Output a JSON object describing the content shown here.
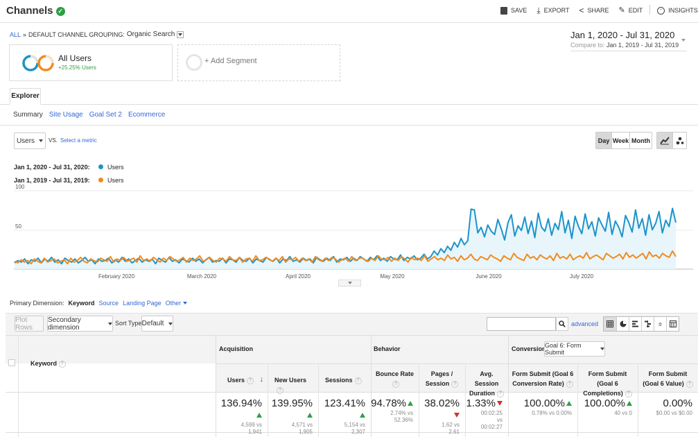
{
  "header": {
    "title": "Channels",
    "actions": [
      {
        "label": "SAVE",
        "icon": "save-icon"
      },
      {
        "label": "EXPORT",
        "icon": "export-icon"
      },
      {
        "label": "SHARE",
        "icon": "share-icon"
      },
      {
        "label": "EDIT",
        "icon": "pencil-icon"
      },
      {
        "label": "INSIGHTS",
        "icon": "insights-icon"
      }
    ]
  },
  "breadcrumb": {
    "all": "ALL",
    "separator": "»",
    "grouping": "DEFAULT CHANNEL GROUPING:",
    "value": "Organic Search"
  },
  "date_range": {
    "primary": "Jan 1, 2020 - Jul 31, 2020",
    "compare_label": "Compare to:",
    "compare": "Jan 1, 2019 - Jul 31, 2019"
  },
  "segments": {
    "active_name": "All Users",
    "active_change": "+25.25% Users",
    "add_label": "+ Add Segment"
  },
  "tabs": {
    "active": "Explorer",
    "subtabs": [
      "Summary",
      "Site Usage",
      "Goal Set 2",
      "Ecommerce"
    ]
  },
  "chart_controls": {
    "metric": "Users",
    "vs": "VS.",
    "select_metric": "Select a metric",
    "granularity": [
      "Day",
      "Week",
      "Month"
    ]
  },
  "legend": [
    {
      "range": "Jan 1, 2020 - Jul 31, 2020:",
      "series": "Users",
      "color": "#1d93c9"
    },
    {
      "range": "Jan 1, 2019 - Jul 31, 2019:",
      "series": "Users",
      "color": "#f08b1e"
    }
  ],
  "chart_data": {
    "type": "line",
    "yticks": [
      100,
      50
    ],
    "ylim": [
      0,
      100
    ],
    "x_labels": [
      "February 2020",
      "March 2020",
      "April 2020",
      "May 2020",
      "June 2020",
      "July 2020"
    ],
    "grid": true,
    "series": [
      {
        "name": "Users",
        "period": "Jan 1, 2020 - Jul 31, 2020",
        "color": "#1d93c9",
        "values": [
          7,
          10,
          8,
          12,
          6,
          11,
          9,
          13,
          7,
          12,
          9,
          14,
          8,
          11,
          6,
          13,
          10,
          8,
          12,
          7,
          10,
          14,
          9,
          11,
          6,
          12,
          9,
          10,
          13,
          7,
          11,
          8,
          14,
          9,
          12,
          7,
          10,
          13,
          8,
          11,
          9,
          12,
          6,
          13,
          10,
          8,
          14,
          9,
          11,
          7,
          12,
          10,
          8,
          13,
          9,
          12,
          7,
          11,
          14,
          8,
          10,
          9,
          13,
          7,
          12,
          11,
          8,
          14,
          10,
          9,
          13,
          7,
          12,
          10,
          8,
          14,
          11,
          9,
          13,
          7,
          12,
          10,
          15,
          9,
          11,
          8,
          13,
          10,
          12,
          7,
          14,
          11,
          9,
          13,
          10,
          15,
          8,
          12,
          11,
          14,
          9,
          13,
          10,
          15,
          12,
          9,
          14,
          11,
          16,
          10,
          13,
          9,
          15,
          12,
          11,
          17,
          10,
          14,
          12,
          16,
          11,
          13,
          18,
          12,
          15,
          22,
          17,
          25,
          20,
          28,
          23,
          33,
          27,
          38,
          30,
          35,
          75,
          74,
          45,
          52,
          40,
          55,
          47,
          43,
          62,
          50,
          36,
          58,
          68,
          41,
          54,
          48,
          65,
          44,
          60,
          39,
          70,
          52,
          47,
          63,
          42,
          57,
          49,
          72,
          45,
          61,
          38,
          66,
          53,
          44,
          69,
          50,
          59,
          41,
          64,
          55,
          47,
          71,
          43,
          60,
          52,
          40,
          67,
          58,
          46,
          74,
          51,
          63,
          42,
          68,
          49,
          57,
          72,
          45,
          61,
          53,
          76,
          58
        ]
      },
      {
        "name": "Users",
        "period": "Jan 1, 2019 - Jul 31, 2019",
        "color": "#f08b1e",
        "values": [
          9,
          7,
          11,
          8,
          10,
          6,
          12,
          9,
          7,
          13,
          8,
          10,
          12,
          7,
          9,
          11,
          6,
          13,
          8,
          10,
          14,
          9,
          7,
          12,
          10,
          8,
          13,
          11,
          9,
          15,
          8,
          12,
          10,
          14,
          9,
          11,
          13,
          8,
          16,
          10,
          12,
          9,
          14,
          11,
          8,
          13,
          10,
          15,
          12,
          9,
          11,
          14,
          8,
          13,
          10,
          12,
          16,
          9,
          11,
          14,
          10,
          8,
          13,
          12,
          9,
          15,
          11,
          10,
          14,
          8,
          12,
          13,
          9,
          16,
          10,
          11,
          14,
          12,
          9,
          13,
          10,
          15,
          8,
          12,
          11,
          14,
          9,
          13,
          10,
          12,
          8,
          15,
          11,
          9,
          13,
          10,
          14,
          12,
          8,
          11,
          13,
          9,
          15,
          10,
          12,
          14,
          11,
          9,
          13,
          10,
          16,
          12,
          11,
          14,
          9,
          13,
          10,
          15,
          12,
          8,
          14,
          11,
          13,
          10,
          16,
          9,
          12,
          15,
          11,
          13,
          10,
          17,
          12,
          14,
          9,
          16,
          11,
          13,
          18,
          12,
          10,
          15,
          13,
          11,
          17,
          14,
          12,
          9,
          16,
          13,
          11,
          19,
          14,
          12,
          10,
          18,
          13,
          15,
          11,
          17,
          14,
          12,
          16,
          10,
          19,
          13,
          15,
          12,
          18,
          11,
          14,
          16,
          13,
          20,
          12,
          15,
          17,
          14,
          11,
          19,
          16,
          13,
          15,
          18,
          12,
          20,
          14,
          17,
          13,
          16,
          19,
          12,
          21,
          15,
          17,
          13,
          19,
          16,
          14,
          22,
          15
        ]
      }
    ]
  },
  "dimension": {
    "label": "Primary Dimension:",
    "active": "Keyword",
    "options": [
      "Source",
      "Landing Page",
      "Other"
    ]
  },
  "table_controls": {
    "plot_rows": "Plot Rows",
    "secondary": "Secondary dimension",
    "sort_label": "Sort Type:",
    "sort_value": "Default",
    "advanced": "advanced"
  },
  "table": {
    "keyword_header": "Keyword",
    "groups": {
      "acquisition": "Acquisition",
      "behavior": "Behavior",
      "conversions": "Conversions",
      "goal_select": "Goal 6: Form Submit"
    },
    "columns": [
      {
        "label": "Users",
        "value": "136.94%",
        "trend": "up",
        "sub": "4,599 vs 1,941"
      },
      {
        "label": "New Users",
        "value": "139.95%",
        "trend": "up",
        "sub": "4,571 vs 1,905"
      },
      {
        "label": "Sessions",
        "value": "123.41%",
        "trend": "up",
        "sub": "5,154 vs 2,307"
      },
      {
        "label": "Bounce Rate",
        "value": "94.78%",
        "trend": "up",
        "sub": "2.74% vs 52.36%"
      },
      {
        "label": "Pages / Session",
        "value": "38.02%",
        "trend": "down",
        "sub": "1.62 vs 2.61"
      },
      {
        "label": "Avg. Session Duration",
        "value": "1.33%",
        "trend": "down",
        "sub": "00:02:25 vs 00:02:27"
      },
      {
        "label": "Form Submit (Goal 6 Conversion Rate)",
        "value": "100.00%",
        "trend": "up",
        "sub": "0.78% vs 0.00%"
      },
      {
        "label": "Form Submit (Goal 6 Completions)",
        "value": "100.00%",
        "trend": "up",
        "sub": "40 vs 0"
      },
      {
        "label": "Form Submit (Goal 6 Value)",
        "value": "0.00%",
        "trend": "none",
        "sub": "$0.00 vs $0.00"
      }
    ]
  }
}
